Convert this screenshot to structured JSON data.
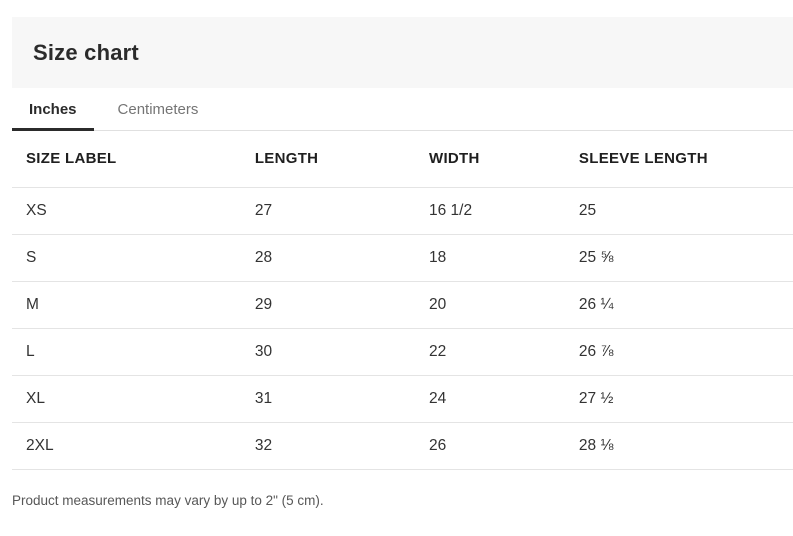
{
  "header": {
    "title": "Size chart"
  },
  "tabs": {
    "inches": {
      "label": "Inches",
      "active": true
    },
    "centimeters": {
      "label": "Centimeters",
      "active": false
    }
  },
  "table": {
    "columns": [
      "SIZE LABEL",
      "LENGTH",
      "WIDTH",
      "SLEEVE LENGTH"
    ],
    "rows": [
      {
        "size": "XS",
        "length": "27",
        "width": "16 1/2",
        "sleeve": "25"
      },
      {
        "size": "S",
        "length": "28",
        "width": "18",
        "sleeve": "25 ⅝"
      },
      {
        "size": "M",
        "length": "29",
        "width": "20",
        "sleeve": "26 ¼"
      },
      {
        "size": "L",
        "length": "30",
        "width": "22",
        "sleeve": "26 ⅞"
      },
      {
        "size": "XL",
        "length": "31",
        "width": "24",
        "sleeve": "27 ½"
      },
      {
        "size": "2XL",
        "length": "32",
        "width": "26",
        "sleeve": "28 ⅛"
      }
    ]
  },
  "note": "Product measurements may vary by up to 2\" (5 cm).",
  "colors": {
    "panel_bg": "#f7f7f7",
    "text_primary": "#2b2b2b",
    "text_secondary": "#757575",
    "divider": "#e4e4e4",
    "tab_underline": "#2b2b2b"
  }
}
